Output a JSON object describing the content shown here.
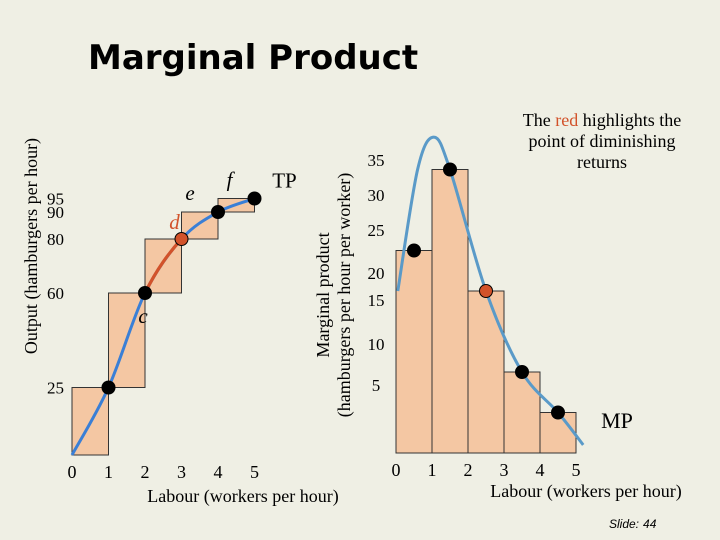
{
  "title": "Marginal Product",
  "note": {
    "pre": "The ",
    "highlight": "red",
    "post": " highlights the point of diminishing returns"
  },
  "slide": {
    "label": "Slide:",
    "number": "44"
  },
  "chart_data": [
    {
      "type": "line",
      "name": "total-product",
      "xlabel": "Labour (workers per hour)",
      "ylabel": "Output (hamburgers per hour)",
      "x_ticks": [
        "0",
        "1",
        "2",
        "3",
        "4",
        "5"
      ],
      "y_ticks": [
        "25",
        "60",
        "80",
        "90",
        "95"
      ],
      "series": [
        {
          "name": "TP",
          "x": [
            0,
            1,
            2,
            3,
            4,
            5
          ],
          "y": [
            0,
            25,
            60,
            80,
            90,
            95
          ]
        }
      ],
      "point_labels": [
        {
          "x": 2,
          "label": "c"
        },
        {
          "x": 3,
          "label": "d"
        },
        {
          "x": 4,
          "label": "e"
        },
        {
          "x": 5,
          "label": "f"
        }
      ],
      "diminishing_returns_at": 3,
      "colors": {
        "curve": "#3a7fd6",
        "highlight": "#d2522a",
        "bars": "#f4c7a3"
      }
    },
    {
      "type": "bar",
      "name": "marginal-product",
      "xlabel": "Labour (workers per hour)",
      "ylabel": "Marginal product (hamburgers per hour per worker)",
      "x_ticks": [
        "0",
        "1",
        "2",
        "3",
        "4",
        "5"
      ],
      "y_ticks": [
        "5",
        "10",
        "15",
        "20",
        "25",
        "30",
        "35"
      ],
      "categories": [
        "1",
        "2",
        "3",
        "4",
        "5"
      ],
      "values": [
        25,
        35,
        20,
        10,
        5
      ],
      "series": [
        {
          "name": "MP",
          "x": [
            0.5,
            1.5,
            2.5,
            3.5,
            4.5
          ],
          "y": [
            25,
            35,
            20,
            10,
            5
          ]
        }
      ],
      "diminishing_returns_at": 2.5,
      "colors": {
        "curve": "#5a9ac8",
        "highlight": "#d2522a",
        "bars": "#f4c7a3"
      }
    }
  ]
}
